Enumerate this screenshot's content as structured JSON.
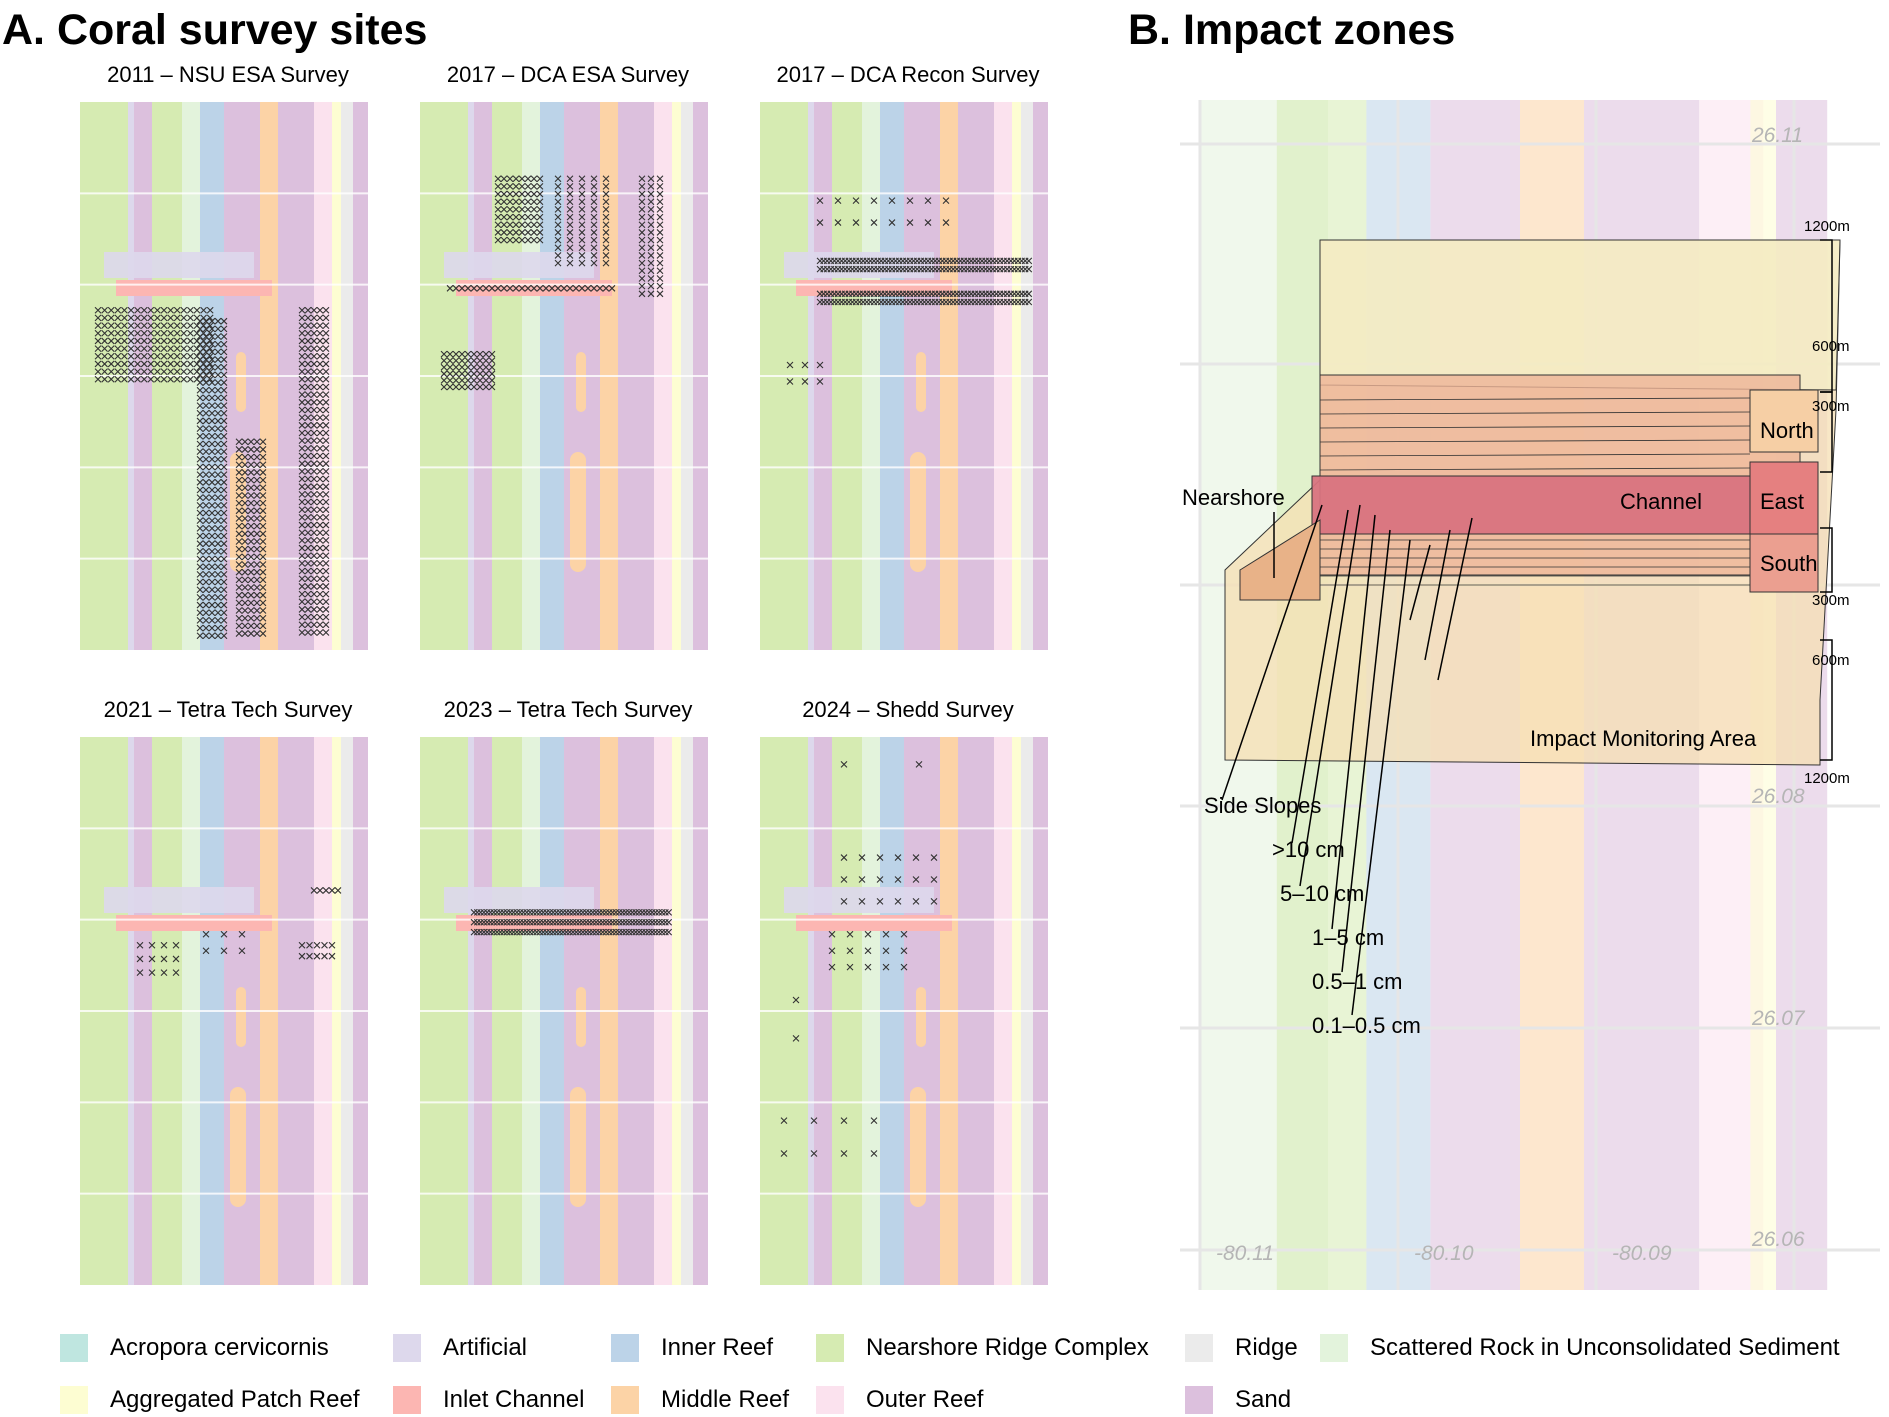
{
  "panel_a": {
    "title": "A. Coral survey sites",
    "maps": [
      {
        "title": "2011 – NSU ESA Survey"
      },
      {
        "title": "2017 – DCA ESA Survey"
      },
      {
        "title": "2017 – DCA Recon Survey"
      },
      {
        "title": "2021 – Tetra Tech Survey"
      },
      {
        "title": "2023 – Tetra Tech Survey"
      },
      {
        "title": "2024 – Shedd Survey"
      }
    ]
  },
  "panel_b": {
    "title": "B. Impact zones",
    "zone_labels": {
      "north": "North",
      "east": "East",
      "south": "South",
      "channel": "Channel",
      "nearshore": "Nearshore",
      "impact_area": "Impact Monitoring Area",
      "side_slopes": "Side Slopes",
      "gt10": ">10 cm",
      "five_ten": "5–10 cm",
      "one_five": "1–5 cm",
      "half_one": "0.5–1 cm",
      "tenth_half": "0.1–0.5 cm"
    },
    "distances": {
      "top1200": "1200m",
      "top600": "600m",
      "top300": "300m",
      "bot300": "300m",
      "bot600": "600m",
      "bot1200": "1200m"
    },
    "coords": {
      "lat1": "26.11",
      "lat2": "26.08",
      "lat3": "26.07",
      "lat4": "26.06",
      "lon1": "-80.11",
      "lon2": "-80.10",
      "lon3": "-80.09"
    }
  },
  "legend": [
    {
      "label": "Acropora cervicornis",
      "color": "#bfe6e0"
    },
    {
      "label": "Artificial",
      "color": "#ddd8ec"
    },
    {
      "label": "Inner Reef",
      "color": "#bcd3e8"
    },
    {
      "label": "Nearshore Ridge Complex",
      "color": "#d6ebb2"
    },
    {
      "label": "Ridge",
      "color": "#ebebeb"
    },
    {
      "label": "Scattered Rock in Unconsolidated Sediment",
      "color": "#e3f3dc"
    },
    {
      "label": "Aggregated Patch Reef",
      "color": "#fdfdd2"
    },
    {
      "label": "Inlet Channel",
      "color": "#fcb6b2"
    },
    {
      "label": "Middle Reef",
      "color": "#fcd3a6"
    },
    {
      "label": "Outer Reef",
      "color": "#fbe2ee"
    },
    {
      "label": "Sand",
      "color": "#dcc0dd"
    }
  ]
}
